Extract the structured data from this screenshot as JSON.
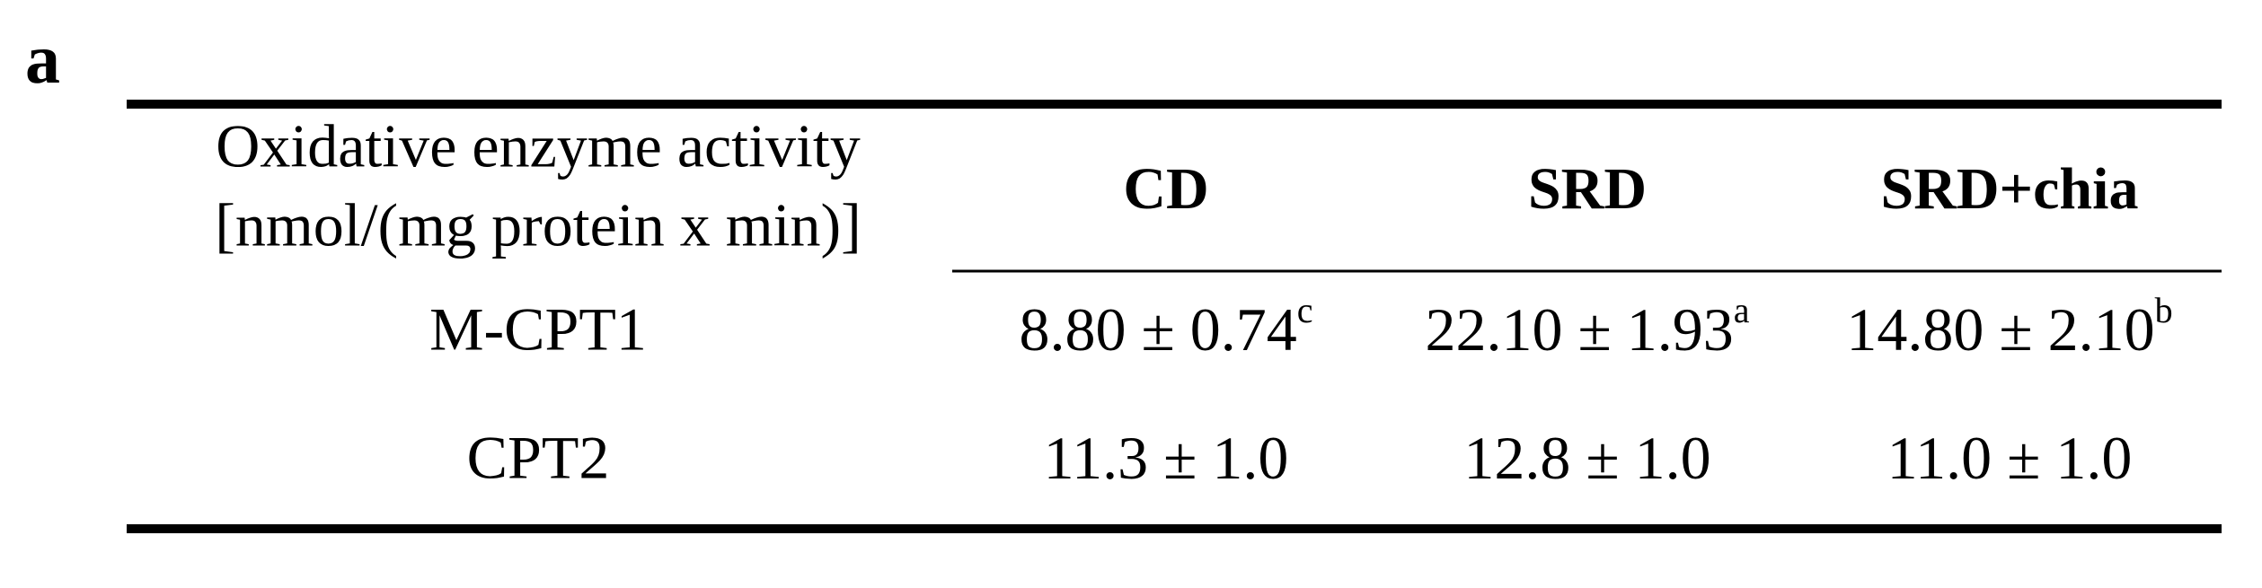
{
  "panel_label": "a",
  "table": {
    "header": {
      "row_label": [
        "Oxidative enzyme activity",
        "[nmol/(mg protein x min)]"
      ],
      "columns": [
        "CD",
        "SRD",
        "SRD+chia"
      ]
    },
    "rows": [
      {
        "label": "M-CPT1",
        "cells": [
          {
            "text": "8.80 ± 0.74",
            "sup": "c"
          },
          {
            "text": "22.10 ± 1.93",
            "sup": "a"
          },
          {
            "text": "14.80 ± 2.10",
            "sup": "b"
          }
        ]
      },
      {
        "label": "CPT2",
        "cells": [
          {
            "text": "11.3 ± 1.0"
          },
          {
            "text": "12.8 ± 1.0"
          },
          {
            "text": "11.0 ± 1.0"
          }
        ]
      }
    ]
  }
}
